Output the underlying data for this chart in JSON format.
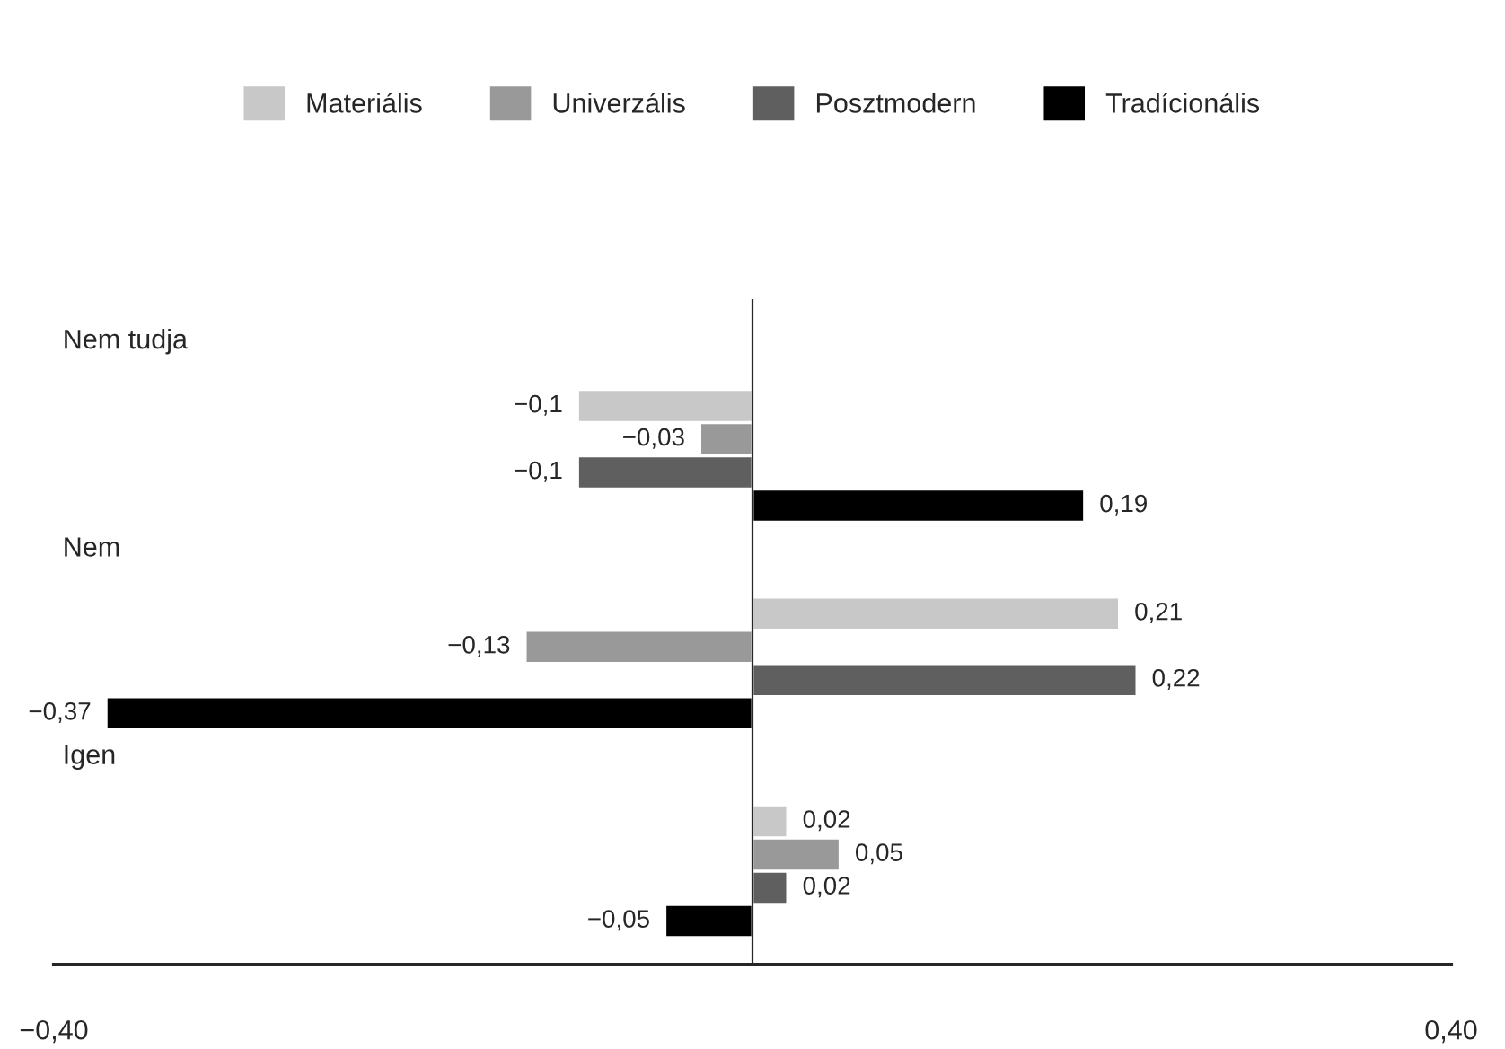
{
  "chart_data": {
    "type": "bar",
    "orientation": "horizontal",
    "categories": [
      "Nem tudja",
      "Nem",
      "Igen"
    ],
    "series": [
      {
        "name": "Materiális",
        "color": "#c8c8c8",
        "values": [
          -0.1,
          0.21,
          0.02
        ],
        "value_labels": [
          "−0,1",
          "0,21",
          "0,02"
        ]
      },
      {
        "name": "Univerzális",
        "color": "#999999",
        "values": [
          -0.03,
          -0.13,
          0.05
        ],
        "value_labels": [
          "−0,03",
          "−0,13",
          "0,05"
        ]
      },
      {
        "name": "Posztmodern",
        "color": "#5f5f5f",
        "values": [
          -0.1,
          0.22,
          0.02
        ],
        "value_labels": [
          "−0,1",
          "0,22",
          "0,02"
        ]
      },
      {
        "name": "Tradícionális",
        "color": "#000000",
        "values": [
          0.19,
          -0.37,
          -0.05
        ],
        "value_labels": [
          "0,19",
          "−0,37",
          "−0,05"
        ]
      }
    ],
    "xlim": [
      -0.4,
      0.4
    ],
    "xticks": [
      {
        "value": -0.4,
        "label": "−0,40"
      },
      {
        "value": 0.4,
        "label": "0,40"
      }
    ],
    "legend": "top",
    "grid": false
  }
}
